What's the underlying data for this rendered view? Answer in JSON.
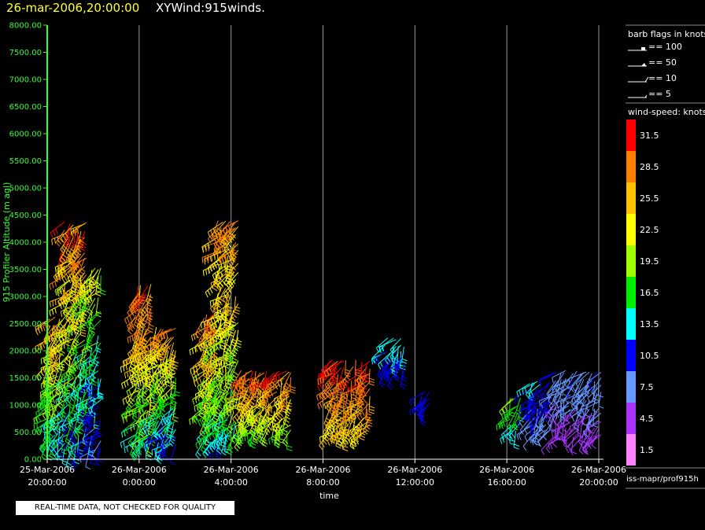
{
  "header": {
    "date": "26-mar-2006,20:00:00",
    "title": "XYWind:915winds."
  },
  "notice": "REAL-TIME DATA, NOT CHECKED FOR QUALITY",
  "footer_source": "iss-mapr/prof915h",
  "colors": {
    "background": "#000000",
    "axis_green": "#33ff33",
    "title_yellow": "#ffff33"
  },
  "barb_legend": {
    "title": "barb flags in knots",
    "items": [
      {
        "label": "== 100"
      },
      {
        "label": "== 50"
      },
      {
        "label": "== 10"
      },
      {
        "label": "== 5"
      }
    ]
  },
  "colorbar": {
    "title": "wind-speed: knots",
    "levels": [
      {
        "label": "31.5",
        "color": "#ff0000"
      },
      {
        "label": "28.5",
        "color": "#ff8000"
      },
      {
        "label": "25.5",
        "color": "#ffc000"
      },
      {
        "label": "22.5",
        "color": "#ffff00"
      },
      {
        "label": "19.5",
        "color": "#a0ff00"
      },
      {
        "label": "16.5",
        "color": "#00ee00"
      },
      {
        "label": "13.5",
        "color": "#00ffff"
      },
      {
        "label": "10.5",
        "color": "#0000ff"
      },
      {
        "label": "7.5",
        "color": "#6699ff"
      },
      {
        "label": "4.5",
        "color": "#aa33ff"
      },
      {
        "label": "1.5",
        "color": "#ff80ff"
      }
    ]
  },
  "chart_data": {
    "type": "scatter",
    "xlabel": "time",
    "ylabel": "915 Profiler Altitude (m agl)",
    "ylim": [
      0,
      8000
    ],
    "xlim": [
      "2006-03-25 20:00",
      "2006-03-26 20:00"
    ],
    "yticks": [
      "0.00",
      "500.00",
      "1000.00",
      "1500.00",
      "2000.00",
      "2500.00",
      "3000.00",
      "3500.00",
      "4000.00",
      "4500.00",
      "5000.00",
      "5500.00",
      "6000.00",
      "6500.00",
      "7000.00",
      "7500.00",
      "8000.00"
    ],
    "xticks": [
      {
        "hour": 0,
        "line1": "25-Mar-2006",
        "line2": "20:00:00"
      },
      {
        "hour": 4,
        "line1": "26-Mar-2006",
        "line2": "0:00:00"
      },
      {
        "hour": 8,
        "line1": "26-Mar-2006",
        "line2": "4:00:00"
      },
      {
        "hour": 12,
        "line1": "26-Mar-2006",
        "line2": "8:00:00"
      },
      {
        "hour": 16,
        "line1": "26-Mar-2006",
        "line2": "12:00:00"
      },
      {
        "hour": 20,
        "line1": "26-Mar-2006",
        "line2": "16:00:00"
      },
      {
        "hour": 24,
        "line1": "26-Mar-2006",
        "line2": "20:00:00"
      }
    ],
    "grid": "vertical lines at each x tick",
    "series": [
      {
        "t": [
          0.0,
          0.75
        ],
        "alt": [
          300,
          2700
        ],
        "speed": [
          10,
          30
        ]
      },
      {
        "t": [
          0.75,
          1.8
        ],
        "alt": [
          150,
          4450
        ],
        "speed": [
          8,
          33
        ]
      },
      {
        "t": [
          1.8,
          2.4
        ],
        "alt": [
          150,
          3600
        ],
        "speed": [
          6,
          24
        ]
      },
      {
        "t": [
          3.8,
          4.6
        ],
        "alt": [
          300,
          3300
        ],
        "speed": [
          12,
          33
        ]
      },
      {
        "t": [
          4.6,
          5.7
        ],
        "alt": [
          250,
          2500
        ],
        "speed": [
          8,
          30
        ]
      },
      {
        "t": [
          6.8,
          7.6
        ],
        "alt": [
          300,
          2800
        ],
        "speed": [
          10,
          33
        ]
      },
      {
        "t": [
          7.4,
          8.4
        ],
        "alt": [
          400,
          4500
        ],
        "speed": [
          13,
          30
        ]
      },
      {
        "t": [
          8.4,
          10.7
        ],
        "alt": [
          500,
          1700
        ],
        "speed": [
          15,
          33
        ]
      },
      {
        "t": [
          12.3,
          14.1
        ],
        "alt": [
          500,
          1900
        ],
        "speed": [
          22,
          33
        ]
      },
      {
        "t": [
          14.7,
          15.6
        ],
        "alt": [
          1600,
          2300
        ],
        "speed": [
          10,
          14
        ]
      },
      {
        "t": [
          16.3,
          16.7
        ],
        "alt": [
          900,
          1300
        ],
        "speed": [
          10,
          11
        ]
      },
      {
        "t": [
          20.1,
          20.7
        ],
        "alt": [
          500,
          1200
        ],
        "speed": [
          12,
          20
        ]
      },
      {
        "t": [
          21.0,
          22.0
        ],
        "alt": [
          500,
          1500
        ],
        "speed": [
          6,
          14
        ]
      },
      {
        "t": [
          22.0,
          24.2
        ],
        "alt": [
          400,
          1700
        ],
        "speed": [
          3,
          10
        ]
      }
    ]
  }
}
